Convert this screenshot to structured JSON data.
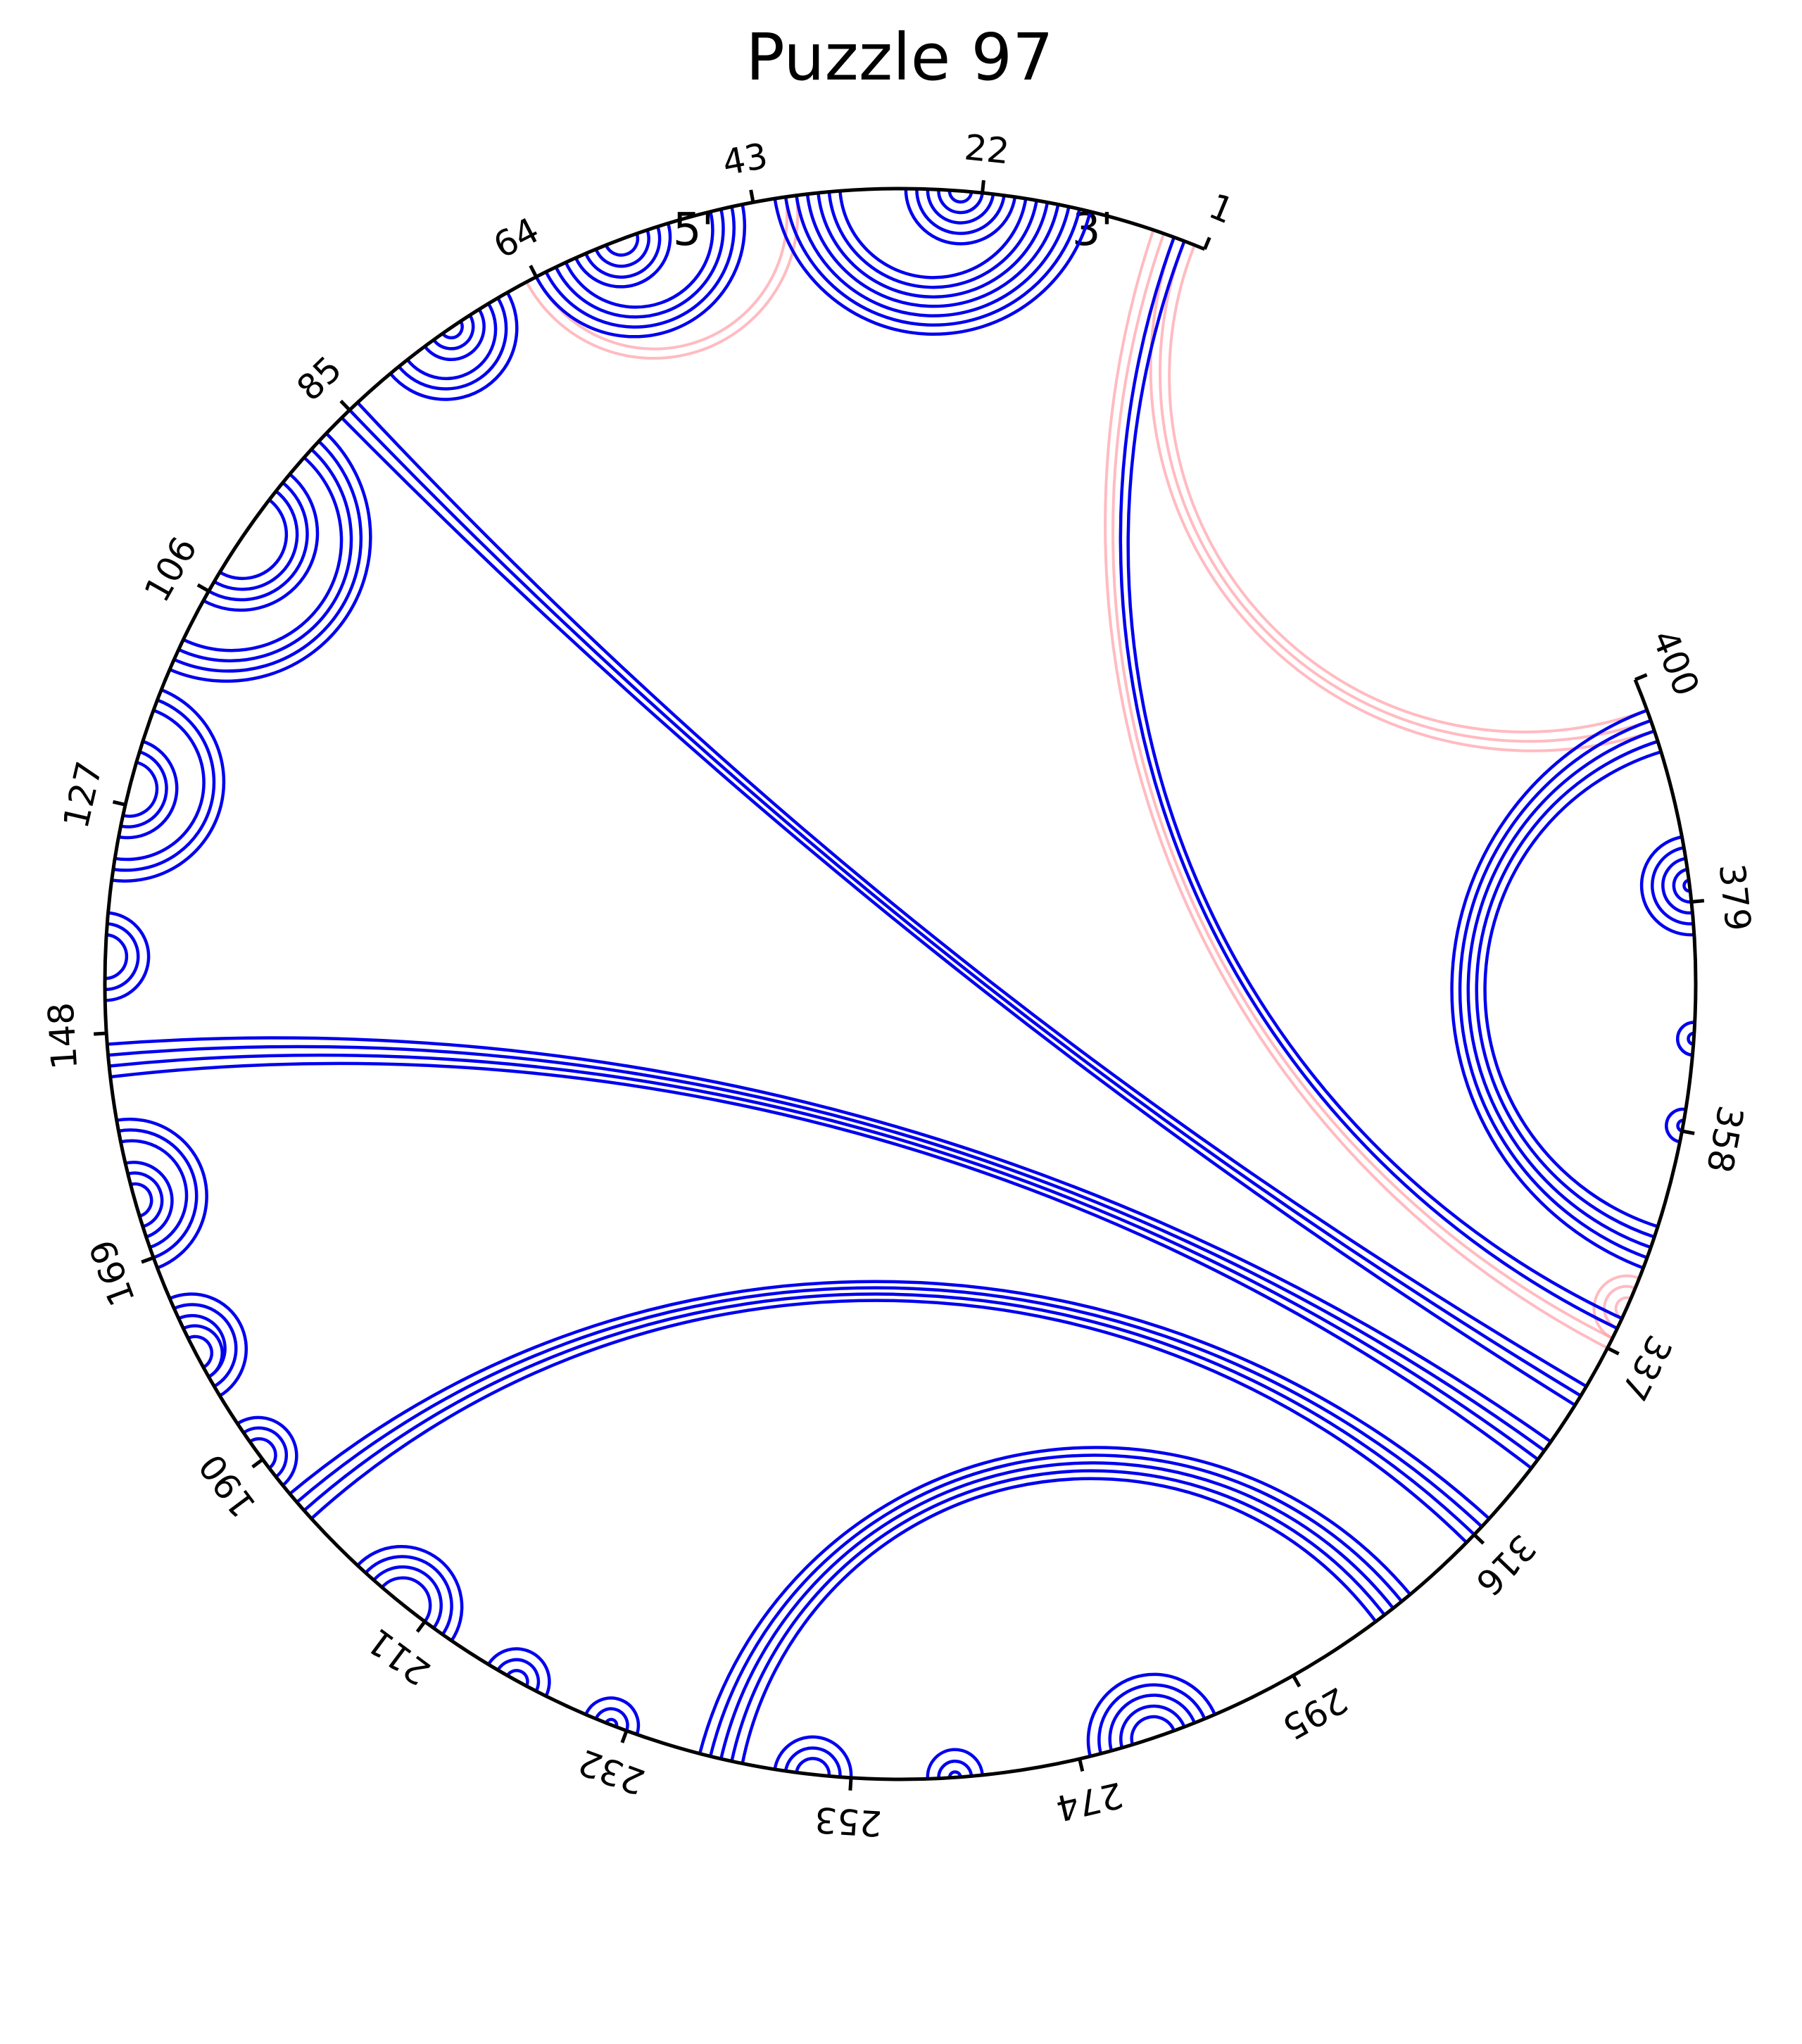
{
  "title": "Puzzle 97",
  "five_prime_label": "5'",
  "three_prime_label": "3'",
  "sequence_length": 400,
  "colors": {
    "primary": "#0000ee",
    "alternate": "#ff9ea6",
    "backbone": "#000000"
  },
  "tick_labels": [
    {
      "pos": 1,
      "text": "1"
    },
    {
      "pos": 22,
      "text": "22"
    },
    {
      "pos": 43,
      "text": "43"
    },
    {
      "pos": 64,
      "text": "64"
    },
    {
      "pos": 85,
      "text": "85"
    },
    {
      "pos": 106,
      "text": "106"
    },
    {
      "pos": 127,
      "text": "127"
    },
    {
      "pos": 148,
      "text": "148"
    },
    {
      "pos": 169,
      "text": "169"
    },
    {
      "pos": 190,
      "text": "190"
    },
    {
      "pos": 211,
      "text": "211"
    },
    {
      "pos": 232,
      "text": "232"
    },
    {
      "pos": 253,
      "text": "253"
    },
    {
      "pos": 274,
      "text": "274"
    },
    {
      "pos": 295,
      "text": "295"
    },
    {
      "pos": 316,
      "text": "316"
    },
    {
      "pos": 337,
      "text": "337"
    },
    {
      "pos": 358,
      "text": "358"
    },
    {
      "pos": 379,
      "text": "379"
    },
    {
      "pos": 400,
      "text": "400"
    }
  ],
  "primary_helices": [
    {
      "i": 3,
      "j": 340,
      "len": 2
    },
    {
      "i": 12,
      "j": 41,
      "len": 7
    },
    {
      "i": 19,
      "j": 29,
      "len": 5
    },
    {
      "i": 44,
      "j": 64,
      "len": 4
    },
    {
      "i": 51,
      "j": 60,
      "len": 4
    },
    {
      "i": 67,
      "j": 80,
      "len": 3
    },
    {
      "i": 70,
      "j": 76,
      "len": 3
    },
    {
      "i": 84,
      "j": 333,
      "len": 3
    },
    {
      "i": 88,
      "j": 114,
      "len": 4
    },
    {
      "i": 93,
      "j": 107,
      "len": 4
    },
    {
      "i": 116,
      "j": 134,
      "len": 3
    },
    {
      "i": 121,
      "j": 130,
      "len": 3
    },
    {
      "i": 137,
      "j": 145,
      "len": 3
    },
    {
      "i": 149,
      "j": 327,
      "len": 4
    },
    {
      "i": 156,
      "j": 170,
      "len": 3
    },
    {
      "i": 160,
      "j": 167,
      "len": 3
    },
    {
      "i": 173,
      "j": 183,
      "len": 3
    },
    {
      "i": 176,
      "j": 181,
      "len": 2
    },
    {
      "i": 186,
      "j": 193,
      "len": 3
    },
    {
      "i": 194,
      "j": 318,
      "len": 4
    },
    {
      "i": 203,
      "j": 214,
      "len": 4
    },
    {
      "i": 218,
      "j": 224,
      "len": 3
    },
    {
      "i": 228,
      "j": 233,
      "len": 3
    },
    {
      "i": 239,
      "j": 308,
      "len": 5
    },
    {
      "i": 246,
      "j": 253,
      "len": 3
    },
    {
      "i": 260,
      "j": 265,
      "len": 3
    },
    {
      "i": 275,
      "j": 287,
      "len": 5
    },
    {
      "i": 345,
      "j": 397,
      "len": 5
    },
    {
      "i": 357,
      "j": 360,
      "len": 2
    },
    {
      "i": 365,
      "j": 368,
      "len": 2
    },
    {
      "i": 376,
      "j": 385,
      "len": 5
    }
  ],
  "alternate_helices": [
    {
      "i": 4,
      "j": 339,
      "len": 3
    },
    {
      "i": 39,
      "j": 65,
      "len": 2
    },
    {
      "i": 338,
      "j": 344,
      "len": 3
    },
    {
      "i": 2,
      "j": 397,
      "len": 3
    }
  ]
}
